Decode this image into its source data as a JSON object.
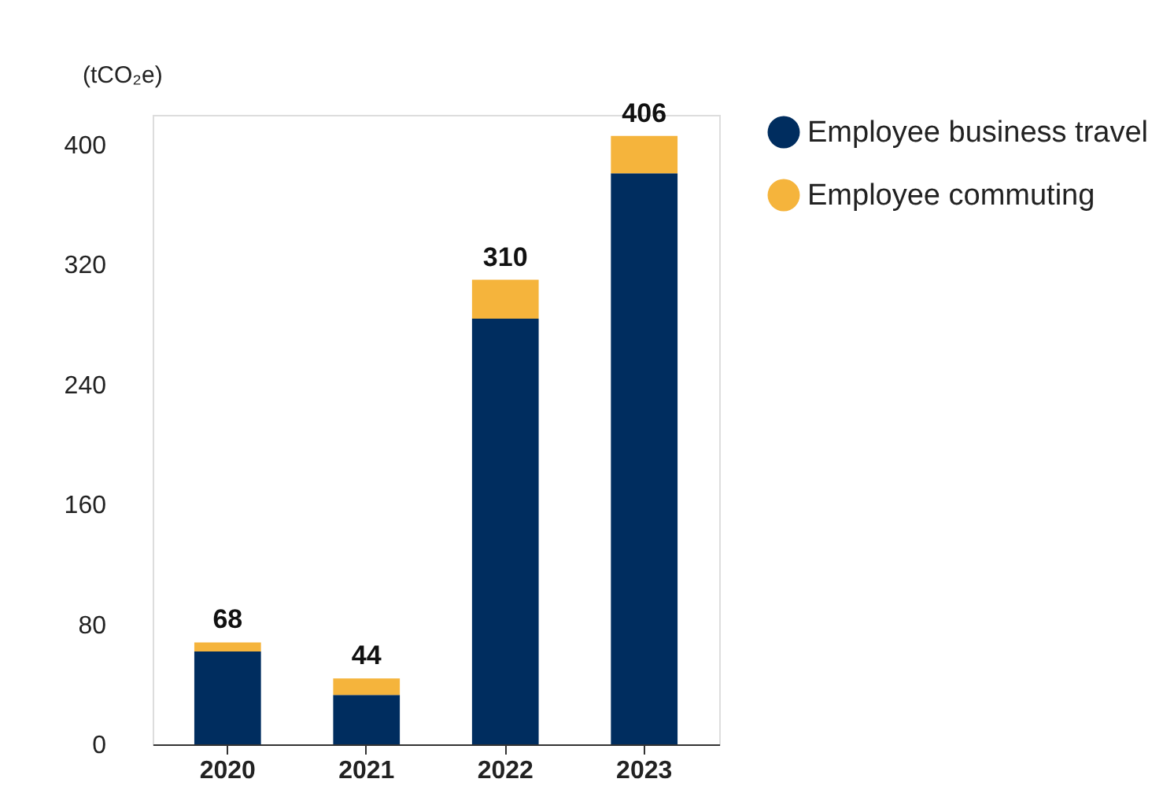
{
  "chart_data": {
    "type": "bar",
    "stacked": true,
    "ylabel": "(tCO₂e)",
    "categories": [
      "2020",
      "2021",
      "2022",
      "2023"
    ],
    "series": [
      {
        "name": "Employee business travel",
        "color": "#002d5f",
        "values": [
          62,
          33,
          284,
          381
        ]
      },
      {
        "name": "Employee commuting",
        "color": "#f5b43c",
        "values": [
          6,
          11,
          26,
          25
        ]
      }
    ],
    "totals": [
      "68",
      "44",
      "310",
      "406"
    ],
    "ylim": [
      0,
      420
    ],
    "yticks": [
      0,
      80,
      160,
      240,
      320,
      400
    ],
    "grid": false,
    "legend": "top right"
  }
}
